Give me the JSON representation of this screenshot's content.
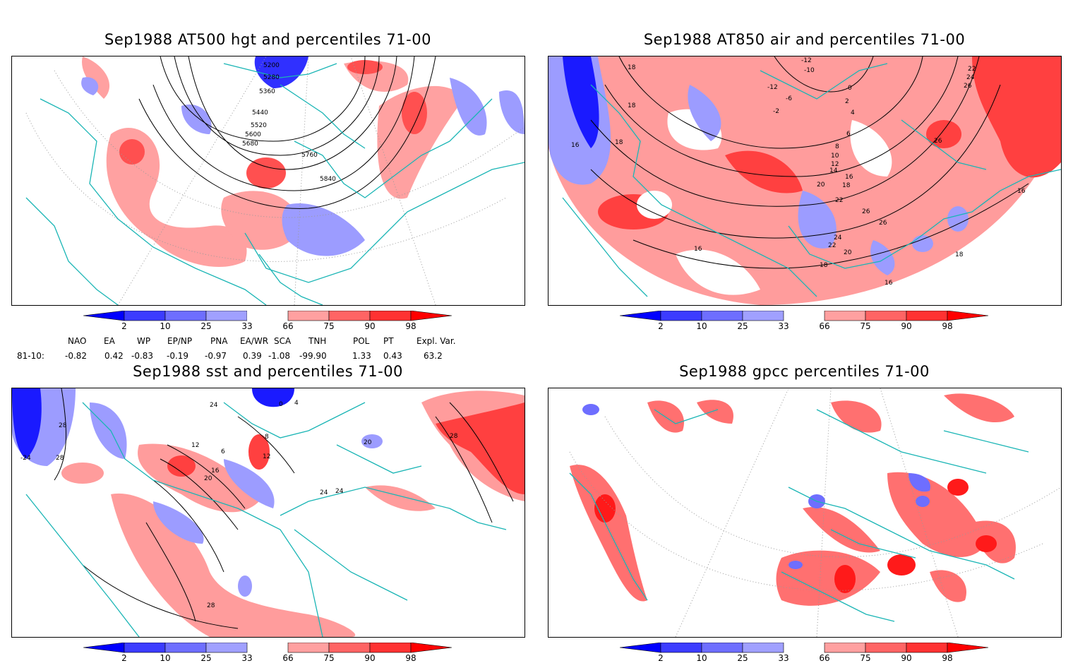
{
  "panels": [
    {
      "id": "p1",
      "title": "Sep1988 AT500 hgt and percentiles 71-00",
      "contour_labels": [
        "5200",
        "5280",
        "5360",
        "5440",
        "5520",
        "5600",
        "5680",
        "5760",
        "5840"
      ]
    },
    {
      "id": "p2",
      "title": "Sep1988 AT850 air and percentiles 71-00",
      "contour_labels": [
        "-12",
        "-10",
        "-12",
        "-6",
        "-2",
        "0",
        "2",
        "4",
        "6",
        "8",
        "10",
        "12",
        "14",
        "16",
        "18",
        "20",
        "22",
        "24",
        "26",
        "26",
        "22",
        "24",
        "20",
        "18",
        "16",
        "16",
        "18",
        "18",
        "18",
        "16",
        "22",
        "24",
        "26",
        "26",
        "16",
        "18"
      ]
    },
    {
      "id": "p3",
      "title": "Sep1988 sst and percentiles 71-00",
      "contour_labels": [
        "28",
        "-24",
        "28",
        "24",
        "12",
        "6",
        "0",
        "4",
        "8",
        "12",
        "16",
        "20",
        "24",
        "24",
        "20",
        "28",
        "28"
      ]
    },
    {
      "id": "p4",
      "title": "Sep1988 gpcc percentiles 71-00",
      "contour_labels": []
    }
  ],
  "colorbar": {
    "ticks": [
      "2",
      "10",
      "25",
      "33",
      "66",
      "75",
      "90",
      "98"
    ],
    "colors": [
      "#0000ff",
      "#3c3cff",
      "#6e6eff",
      "#a0a0ff",
      "#ffffff",
      "#ffa0a0",
      "#ff6464",
      "#ff3232",
      "#ff0000"
    ]
  },
  "indices": {
    "headers": [
      "NAO",
      "EA",
      "WP",
      "EP/NP",
      "PNA",
      "EA/WR",
      "SCA",
      "TNH",
      "POL",
      "PT",
      "Expl. Var."
    ],
    "row_label": "81-10:",
    "values": [
      "-0.82",
      "0.42",
      "-0.83",
      "-0.19",
      "-0.97",
      "0.39",
      "-1.08",
      "-99.90",
      "1.33",
      "0.43",
      "63.2"
    ]
  }
}
